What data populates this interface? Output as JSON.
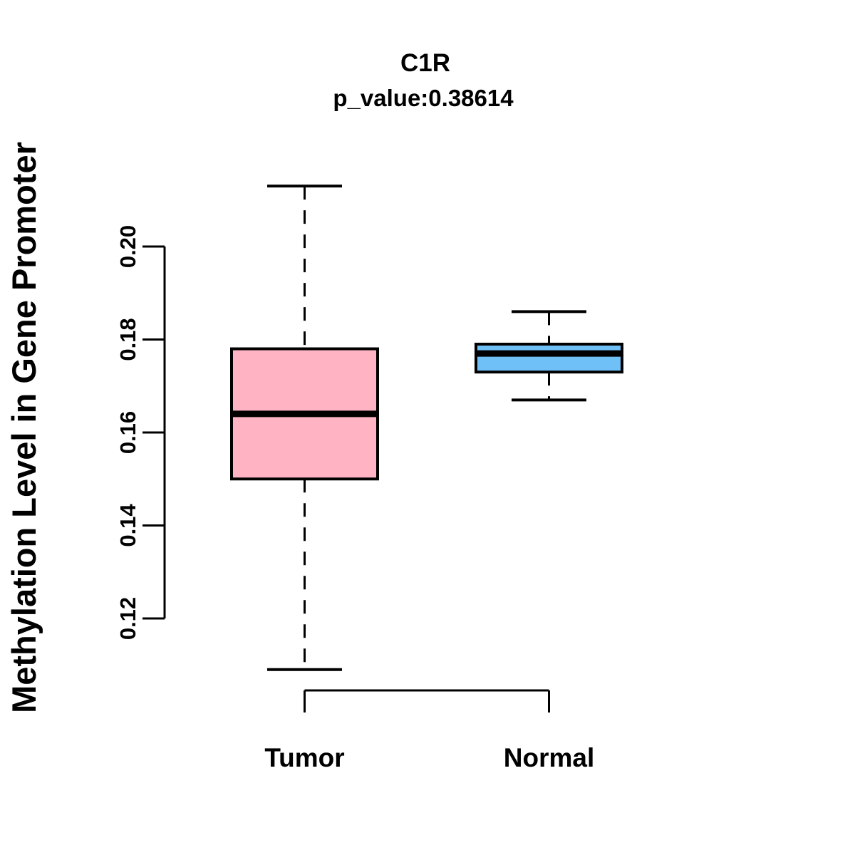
{
  "chart_data": {
    "type": "boxplot",
    "title": "C1R",
    "subtitle": "p_value:0.38614",
    "p_value": 0.38614,
    "ylabel": "Methylation Level in Gene Promoter",
    "xlabel": "",
    "categories": [
      "Tumor",
      "Normal"
    ],
    "y_ticks": [
      "0.12",
      "0.14",
      "0.16",
      "0.18",
      "0.20"
    ],
    "y_tick_values": [
      0.12,
      0.14,
      0.16,
      0.18,
      0.2
    ],
    "y_axis_range": [
      0.12,
      0.2
    ],
    "grid": false,
    "legend": false,
    "series": [
      {
        "name": "Tumor",
        "fill_color": "#FFB3C3",
        "whisker_low": 0.109,
        "q1": 0.15,
        "median": 0.164,
        "q3": 0.178,
        "whisker_high": 0.213
      },
      {
        "name": "Normal",
        "fill_color": "#6FC0F7",
        "whisker_low": 0.167,
        "q1": 0.173,
        "median": 0.177,
        "q3": 0.179,
        "whisker_high": 0.186
      }
    ],
    "style_colors": {
      "stroke": "#000000",
      "background": "#FFFFFF"
    }
  }
}
